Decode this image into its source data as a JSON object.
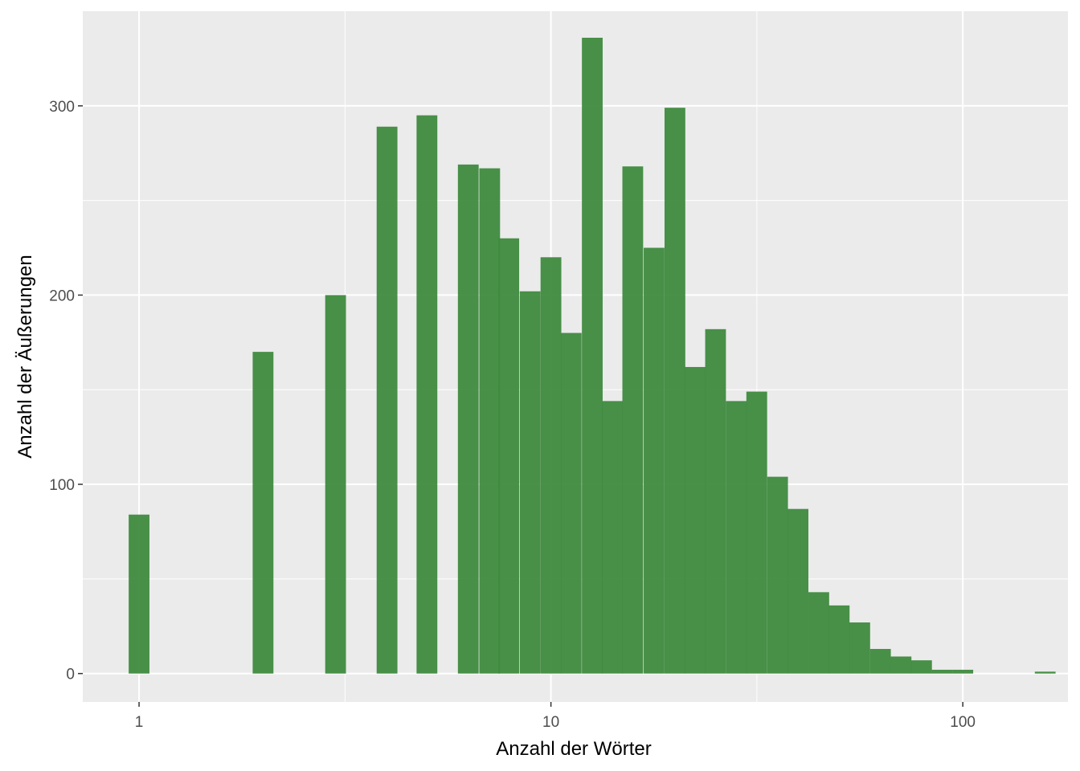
{
  "colors": {
    "panel": "#ebebeb",
    "grid": "#ffffff",
    "bar": "#3f8a3f",
    "tick_text": "#4d4d4d"
  },
  "chart_data": {
    "type": "bar",
    "title": "",
    "xlabel": "Anzahl der Wörter",
    "ylabel": "Anzahl der Äußerungen",
    "x_scale": "log10",
    "xlim": [
      0.73,
      180
    ],
    "ylim": [
      -15,
      350
    ],
    "x_ticks": [
      1,
      10,
      100
    ],
    "y_ticks": [
      0,
      100,
      200,
      300
    ],
    "grid": true,
    "bin_width_log10": 0.0504,
    "bars": [
      {
        "x": 1.0,
        "y": 84
      },
      {
        "x": 2.0,
        "y": 170
      },
      {
        "x": 3.0,
        "y": 200
      },
      {
        "x": 4.0,
        "y": 289
      },
      {
        "x": 5.0,
        "y": 295
      },
      {
        "x": 6.3,
        "y": 269
      },
      {
        "x": 7.1,
        "y": 267
      },
      {
        "x": 7.9,
        "y": 230
      },
      {
        "x": 8.9,
        "y": 202
      },
      {
        "x": 10.0,
        "y": 220
      },
      {
        "x": 11.2,
        "y": 180
      },
      {
        "x": 12.6,
        "y": 336
      },
      {
        "x": 14.1,
        "y": 144
      },
      {
        "x": 15.8,
        "y": 268
      },
      {
        "x": 17.8,
        "y": 225
      },
      {
        "x": 20.0,
        "y": 299
      },
      {
        "x": 22.4,
        "y": 162
      },
      {
        "x": 25.1,
        "y": 182
      },
      {
        "x": 28.2,
        "y": 144
      },
      {
        "x": 31.6,
        "y": 149
      },
      {
        "x": 35.5,
        "y": 104
      },
      {
        "x": 39.8,
        "y": 87
      },
      {
        "x": 44.7,
        "y": 43
      },
      {
        "x": 50.1,
        "y": 36
      },
      {
        "x": 56.2,
        "y": 27
      },
      {
        "x": 63.1,
        "y": 13
      },
      {
        "x": 70.8,
        "y": 9
      },
      {
        "x": 79.4,
        "y": 7
      },
      {
        "x": 89.1,
        "y": 2
      },
      {
        "x": 100.0,
        "y": 2
      },
      {
        "x": 158.5,
        "y": 1
      }
    ]
  }
}
